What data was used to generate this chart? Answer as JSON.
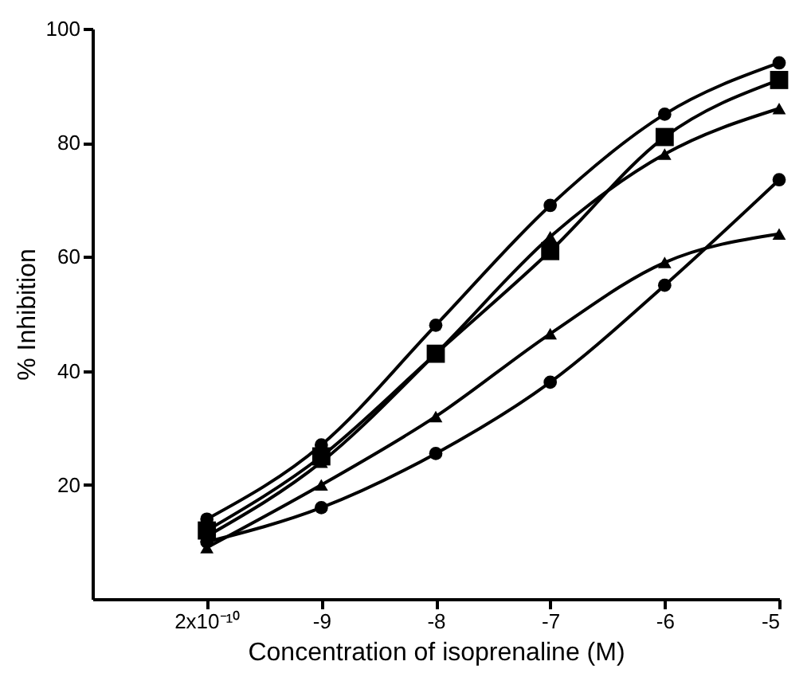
{
  "chart_data": {
    "type": "line",
    "xlabel": "Concentration of isoprenaline (M)",
    "ylabel": "% Inhibition",
    "categories": [
      "2x10⁻¹⁰",
      "-9",
      "-8",
      "-7",
      "-6",
      "-5"
    ],
    "ylim": [
      0,
      100
    ],
    "yticks": [
      20,
      40,
      60,
      80,
      100
    ],
    "grid": false,
    "line_style": "solid",
    "series": [
      {
        "color": "#000000",
        "marker": "circle",
        "values": [
          14,
          27,
          48,
          69,
          85,
          94
        ]
      },
      {
        "color": "#000000",
        "marker": "square",
        "values": [
          12,
          25,
          43,
          61,
          81,
          91
        ]
      },
      {
        "color": "#000000",
        "marker": "triangle",
        "values": [
          11,
          24,
          43,
          63.5,
          78,
          86
        ]
      },
      {
        "color": "#000000",
        "marker": "triangle",
        "values": [
          9,
          20,
          32,
          46.5,
          59,
          64
        ]
      },
      {
        "color": "#000000",
        "marker": "circle",
        "values": [
          10,
          16,
          25.5,
          38,
          55,
          73.5
        ]
      }
    ]
  }
}
